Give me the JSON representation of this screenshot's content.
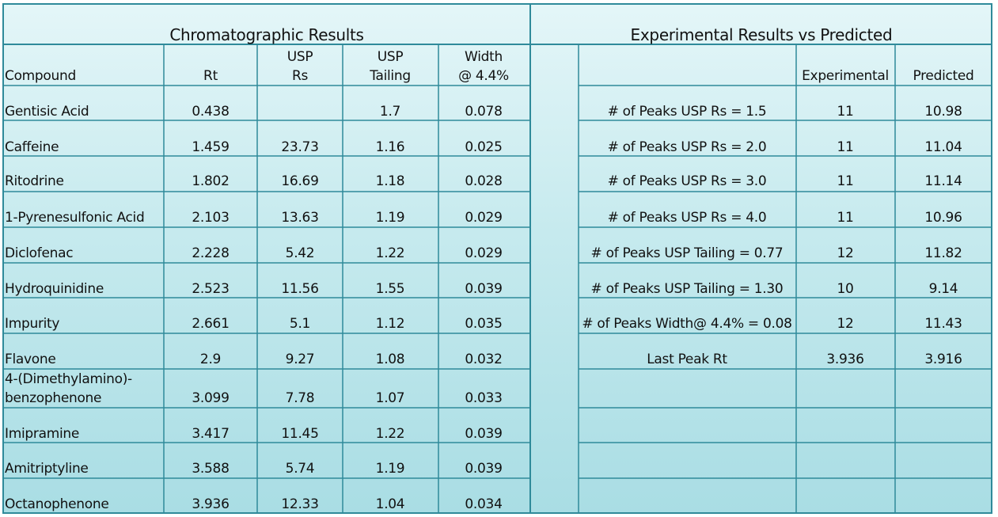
{
  "left_table": {
    "title": "Chromatographic Results",
    "headers": {
      "compound": "Compound",
      "rt": "Rt",
      "usp_rs": [
        "USP",
        "Rs"
      ],
      "usp_tailing": [
        "USP",
        "Tailing"
      ],
      "width": [
        "Width",
        "@ 4.4%"
      ]
    },
    "rows": [
      {
        "compound": "Gentisic Acid",
        "rt": "0.438",
        "rs": "",
        "tailing": "1.7",
        "width": "0.078"
      },
      {
        "compound": "Caffeine",
        "rt": "1.459",
        "rs": "23.73",
        "tailing": "1.16",
        "width": "0.025"
      },
      {
        "compound": "Ritodrine",
        "rt": "1.802",
        "rs": "16.69",
        "tailing": "1.18",
        "width": "0.028"
      },
      {
        "compound": "1-Pyrenesulfonic Acid",
        "rt": "2.103",
        "rs": "13.63",
        "tailing": "1.19",
        "width": "0.029"
      },
      {
        "compound": "Diclofenac",
        "rt": "2.228",
        "rs": "5.42",
        "tailing": "1.22",
        "width": "0.029"
      },
      {
        "compound": "Hydroquinidine",
        "rt": "2.523",
        "rs": "11.56",
        "tailing": "1.55",
        "width": "0.039"
      },
      {
        "compound": "Impurity",
        "rt": "2.661",
        "rs": "5.1",
        "tailing": "1.12",
        "width": "0.035"
      },
      {
        "compound": "Flavone",
        "rt": "2.9",
        "rs": "9.27",
        "tailing": "1.08",
        "width": "0.032"
      },
      {
        "compound": "benzophenone",
        "compound_line1": "4-(Dimethylamino)-",
        "rt": "3.099",
        "rs": "7.78",
        "tailing": "1.07",
        "width": "0.033"
      },
      {
        "compound": "Imipramine",
        "rt": "3.417",
        "rs": "11.45",
        "tailing": "1.22",
        "width": "0.039"
      },
      {
        "compound": "Amitriptyline",
        "rt": "3.588",
        "rs": "5.74",
        "tailing": "1.19",
        "width": "0.039"
      },
      {
        "compound": "Octanophenone",
        "rt": "3.936",
        "rs": "12.33",
        "tailing": "1.04",
        "width": "0.034"
      }
    ]
  },
  "right_table": {
    "title": "Experimental  Results vs Predicted",
    "headers": {
      "experimental": "Experimental",
      "predicted": "Predicted"
    },
    "rows": [
      {
        "label": "# of Peaks USP Rs = 1.5",
        "experimental": "11",
        "predicted": "10.98"
      },
      {
        "label": "# of Peaks USP Rs = 2.0",
        "experimental": "11",
        "predicted": "11.04"
      },
      {
        "label": "# of Peaks USP Rs = 3.0",
        "experimental": "11",
        "predicted": "11.14"
      },
      {
        "label": "# of Peaks USP Rs = 4.0",
        "experimental": "11",
        "predicted": "10.96"
      },
      {
        "label": "# of Peaks USP Tailing = 0.77",
        "experimental": "12",
        "predicted": "11.82"
      },
      {
        "label": "# of Peaks USP Tailing = 1.30",
        "experimental": "10",
        "predicted": "9.14"
      },
      {
        "label": "# of Peaks Width@ 4.4% = 0.08",
        "experimental": "12",
        "predicted": "11.43"
      },
      {
        "label": "Last Peak Rt",
        "experimental": "3.936",
        "predicted": "3.916"
      }
    ]
  },
  "colors": {
    "border": "#2f8a9a",
    "background_top": "#e4f6f8",
    "background_bottom": "#a9dde4"
  }
}
